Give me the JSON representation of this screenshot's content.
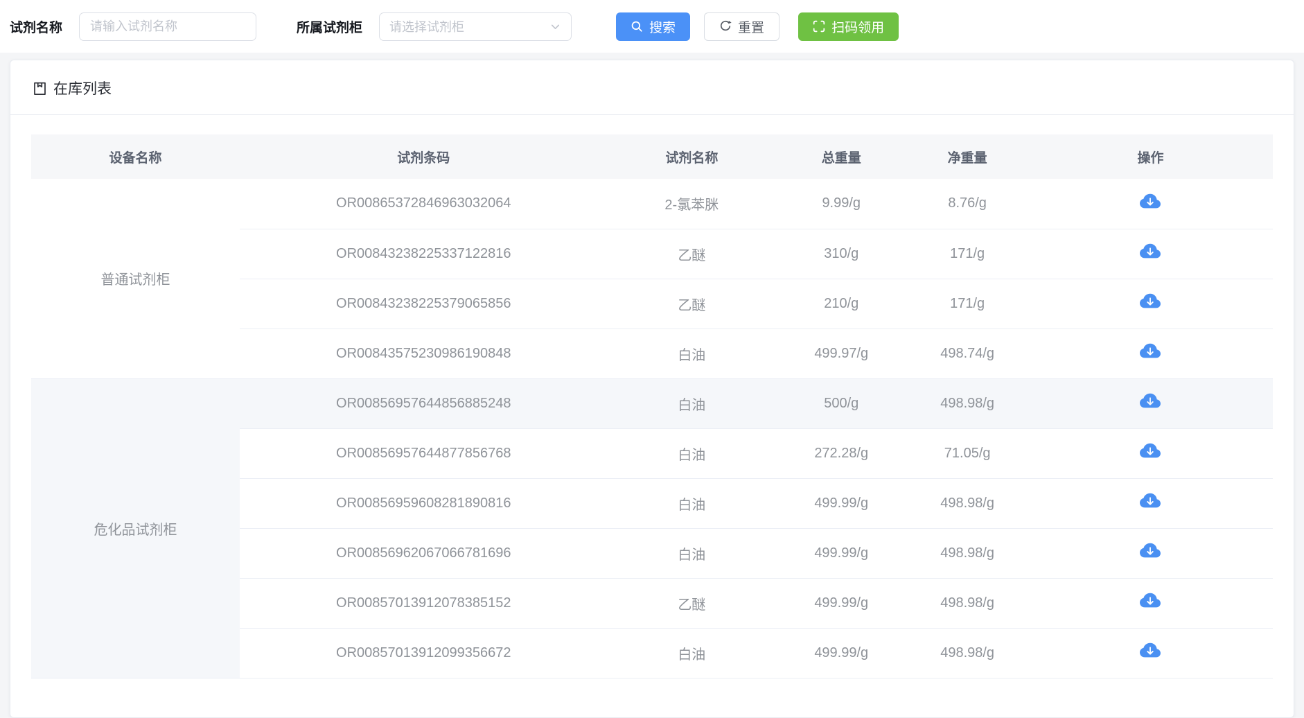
{
  "colors": {
    "accent-blue": "#4b91f7",
    "accent-green": "#6fc143",
    "download-blue": "#4a90f2",
    "header-bg": "#f6f7f9",
    "highlight-bg": "#f5f7fa",
    "row-line": "#ebeef5",
    "cell-text": "#8f9399"
  },
  "filters": {
    "reagent_name_label": "试剂名称",
    "reagent_name_placeholder": "请输入试剂名称",
    "cabinet_label": "所属试剂柜",
    "cabinet_placeholder": "请选择试剂柜",
    "search_button": "搜索",
    "reset_button": "重置",
    "scan_button": "扫码领用"
  },
  "card": {
    "title": "在库列表"
  },
  "table": {
    "columns": [
      "设备名称",
      "试剂条码",
      "试剂名称",
      "总重量",
      "净重量",
      "操作"
    ],
    "groups": [
      {
        "device": "普通试剂柜",
        "highlighted": false,
        "rows": [
          {
            "barcode": "OR00865372846963032064",
            "name": "2-氯苯脒",
            "total": "9.99/g",
            "net": "8.76/g",
            "highlighted": false
          },
          {
            "barcode": "OR00843238225337122816",
            "name": "乙醚",
            "total": "310/g",
            "net": "171/g",
            "highlighted": false
          },
          {
            "barcode": "OR00843238225379065856",
            "name": "乙醚",
            "total": "210/g",
            "net": "171/g",
            "highlighted": false
          },
          {
            "barcode": "OR00843575230986190848",
            "name": "白油",
            "total": "499.97/g",
            "net": "498.74/g",
            "highlighted": false
          }
        ]
      },
      {
        "device": "危化品试剂柜",
        "highlighted": true,
        "rows": [
          {
            "barcode": "OR00856957644856885248",
            "name": "白油",
            "total": "500/g",
            "net": "498.98/g",
            "highlighted": true
          },
          {
            "barcode": "OR00856957644877856768",
            "name": "白油",
            "total": "272.28/g",
            "net": "71.05/g",
            "highlighted": false
          },
          {
            "barcode": "OR00856959608281890816",
            "name": "白油",
            "total": "499.99/g",
            "net": "498.98/g",
            "highlighted": false
          },
          {
            "barcode": "OR00856962067066781696",
            "name": "白油",
            "total": "499.99/g",
            "net": "498.98/g",
            "highlighted": false
          },
          {
            "barcode": "OR00857013912078385152",
            "name": "乙醚",
            "total": "499.99/g",
            "net": "498.98/g",
            "highlighted": false
          },
          {
            "barcode": "OR00857013912099356672",
            "name": "白油",
            "total": "499.99/g",
            "net": "498.98/g",
            "highlighted": false
          }
        ]
      }
    ]
  }
}
